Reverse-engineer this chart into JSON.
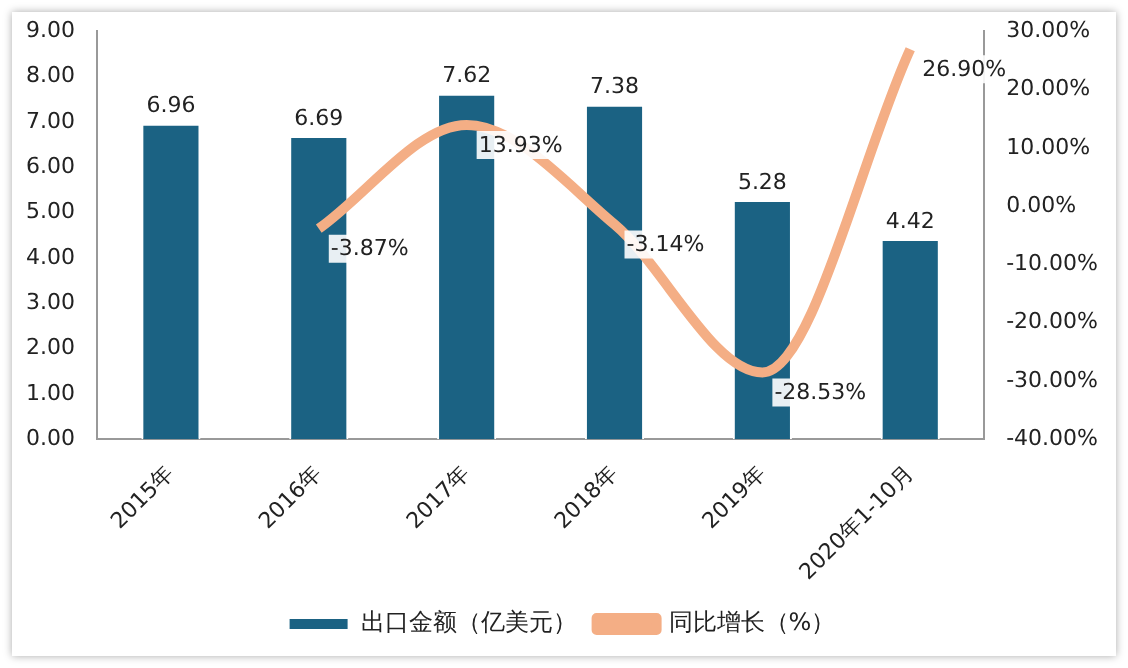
{
  "chart_data": {
    "type": "bar",
    "categories": [
      "2015年",
      "2016年",
      "2017年",
      "2018年",
      "2019年",
      "2020年1-10月"
    ],
    "series": [
      {
        "name": "出口金额（亿美元）",
        "color": "#1b6283",
        "values": [
          6.96,
          6.69,
          7.62,
          7.38,
          5.28,
          4.42
        ],
        "value_labels": [
          "6.96",
          "6.69",
          "7.62",
          "7.38",
          "5.28",
          "4.42"
        ]
      },
      {
        "name": "同比增长（%）",
        "type": "line",
        "axis": "y2",
        "color": "#f4ae85",
        "values": [
          null,
          -3.87,
          13.93,
          -3.14,
          -28.53,
          26.9
        ],
        "value_labels": [
          null,
          "-3.87%",
          "13.93%",
          "-3.14%",
          "-28.53%",
          "26.90%"
        ]
      }
    ],
    "ylim": [
      0,
      9
    ],
    "yticks": [
      {
        "value": 0,
        "label": "0.00"
      },
      {
        "value": 1,
        "label": "1.00"
      },
      {
        "value": 2,
        "label": "2.00"
      },
      {
        "value": 3,
        "label": "3.00"
      },
      {
        "value": 4,
        "label": "4.00"
      },
      {
        "value": 5,
        "label": "5.00"
      },
      {
        "value": 6,
        "label": "6.00"
      },
      {
        "value": 7,
        "label": "7.00"
      },
      {
        "value": 8,
        "label": "8.00"
      },
      {
        "value": 9,
        "label": "9.00"
      }
    ],
    "y2lim": [
      -40,
      30
    ],
    "y2ticks": [
      {
        "value": -40,
        "label": "-40.00%"
      },
      {
        "value": -30,
        "label": "-30.00%"
      },
      {
        "value": -20,
        "label": "-20.00%"
      },
      {
        "value": -10,
        "label": "-10.00%"
      },
      {
        "value": 0,
        "label": "0.00%"
      },
      {
        "value": 10,
        "label": "10.00%"
      },
      {
        "value": 20,
        "label": "20.00%"
      },
      {
        "value": 30,
        "label": "30.00%"
      }
    ],
    "legend": "bottom",
    "marker": "none"
  }
}
